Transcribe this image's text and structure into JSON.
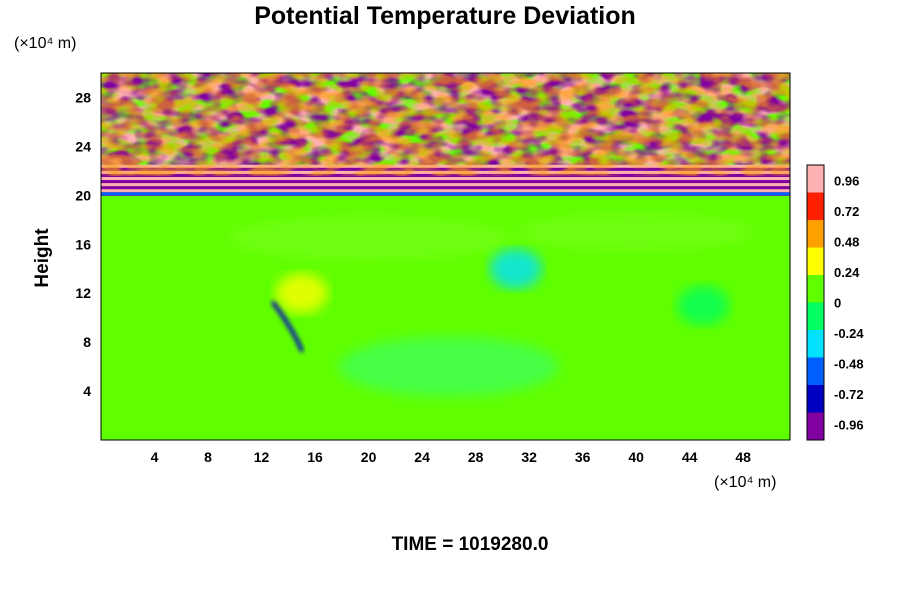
{
  "chart_data": {
    "type": "heatmap",
    "title": "Potential Temperature Deviation",
    "ylabel": "Height",
    "y_unit": "(×10⁴ m)",
    "x_unit": "(×10⁴ m)",
    "xlabel": "",
    "x_ticks": [
      4,
      8,
      12,
      16,
      20,
      24,
      28,
      32,
      36,
      40,
      44,
      48
    ],
    "y_ticks": [
      4,
      8,
      12,
      16,
      20,
      24,
      28
    ],
    "xlim": [
      0,
      51.5
    ],
    "ylim": [
      0,
      30
    ],
    "colorbar_ticks": [
      "0.96",
      "0.72",
      "0.48",
      "0.24",
      "0",
      "-0.24",
      "-0.48",
      "-0.72",
      "-0.96"
    ],
    "colorbar_range": [
      -1.08,
      1.08
    ],
    "colormap": [
      "#8000a0",
      "#0000c0",
      "#0060ff",
      "#00e0ff",
      "#00ff60",
      "#60ff00",
      "#ffff00",
      "#ffa000",
      "#ff2000",
      "#ffb0b0"
    ],
    "bands": [
      {
        "y_from": 0,
        "y_to": 20,
        "regime": "smooth near-zero",
        "dominant_value": 0.0
      },
      {
        "y_from": 20,
        "y_to": 22.5,
        "regime": "layered strong alternating",
        "values": [
          0.96,
          -0.96
        ]
      },
      {
        "y_from": 22.5,
        "y_to": 30,
        "regime": "turbulent mixed",
        "values": [
          -0.96,
          0.96
        ]
      }
    ],
    "features": [
      {
        "x": 15,
        "y": 12,
        "value": 0.3
      },
      {
        "x": 14,
        "y": 10,
        "value": -0.8
      },
      {
        "x": 31,
        "y": 14,
        "value": -0.3
      },
      {
        "x": 45,
        "y": 11,
        "value": -0.2
      }
    ],
    "footer": "TIME = 1019280.0"
  }
}
